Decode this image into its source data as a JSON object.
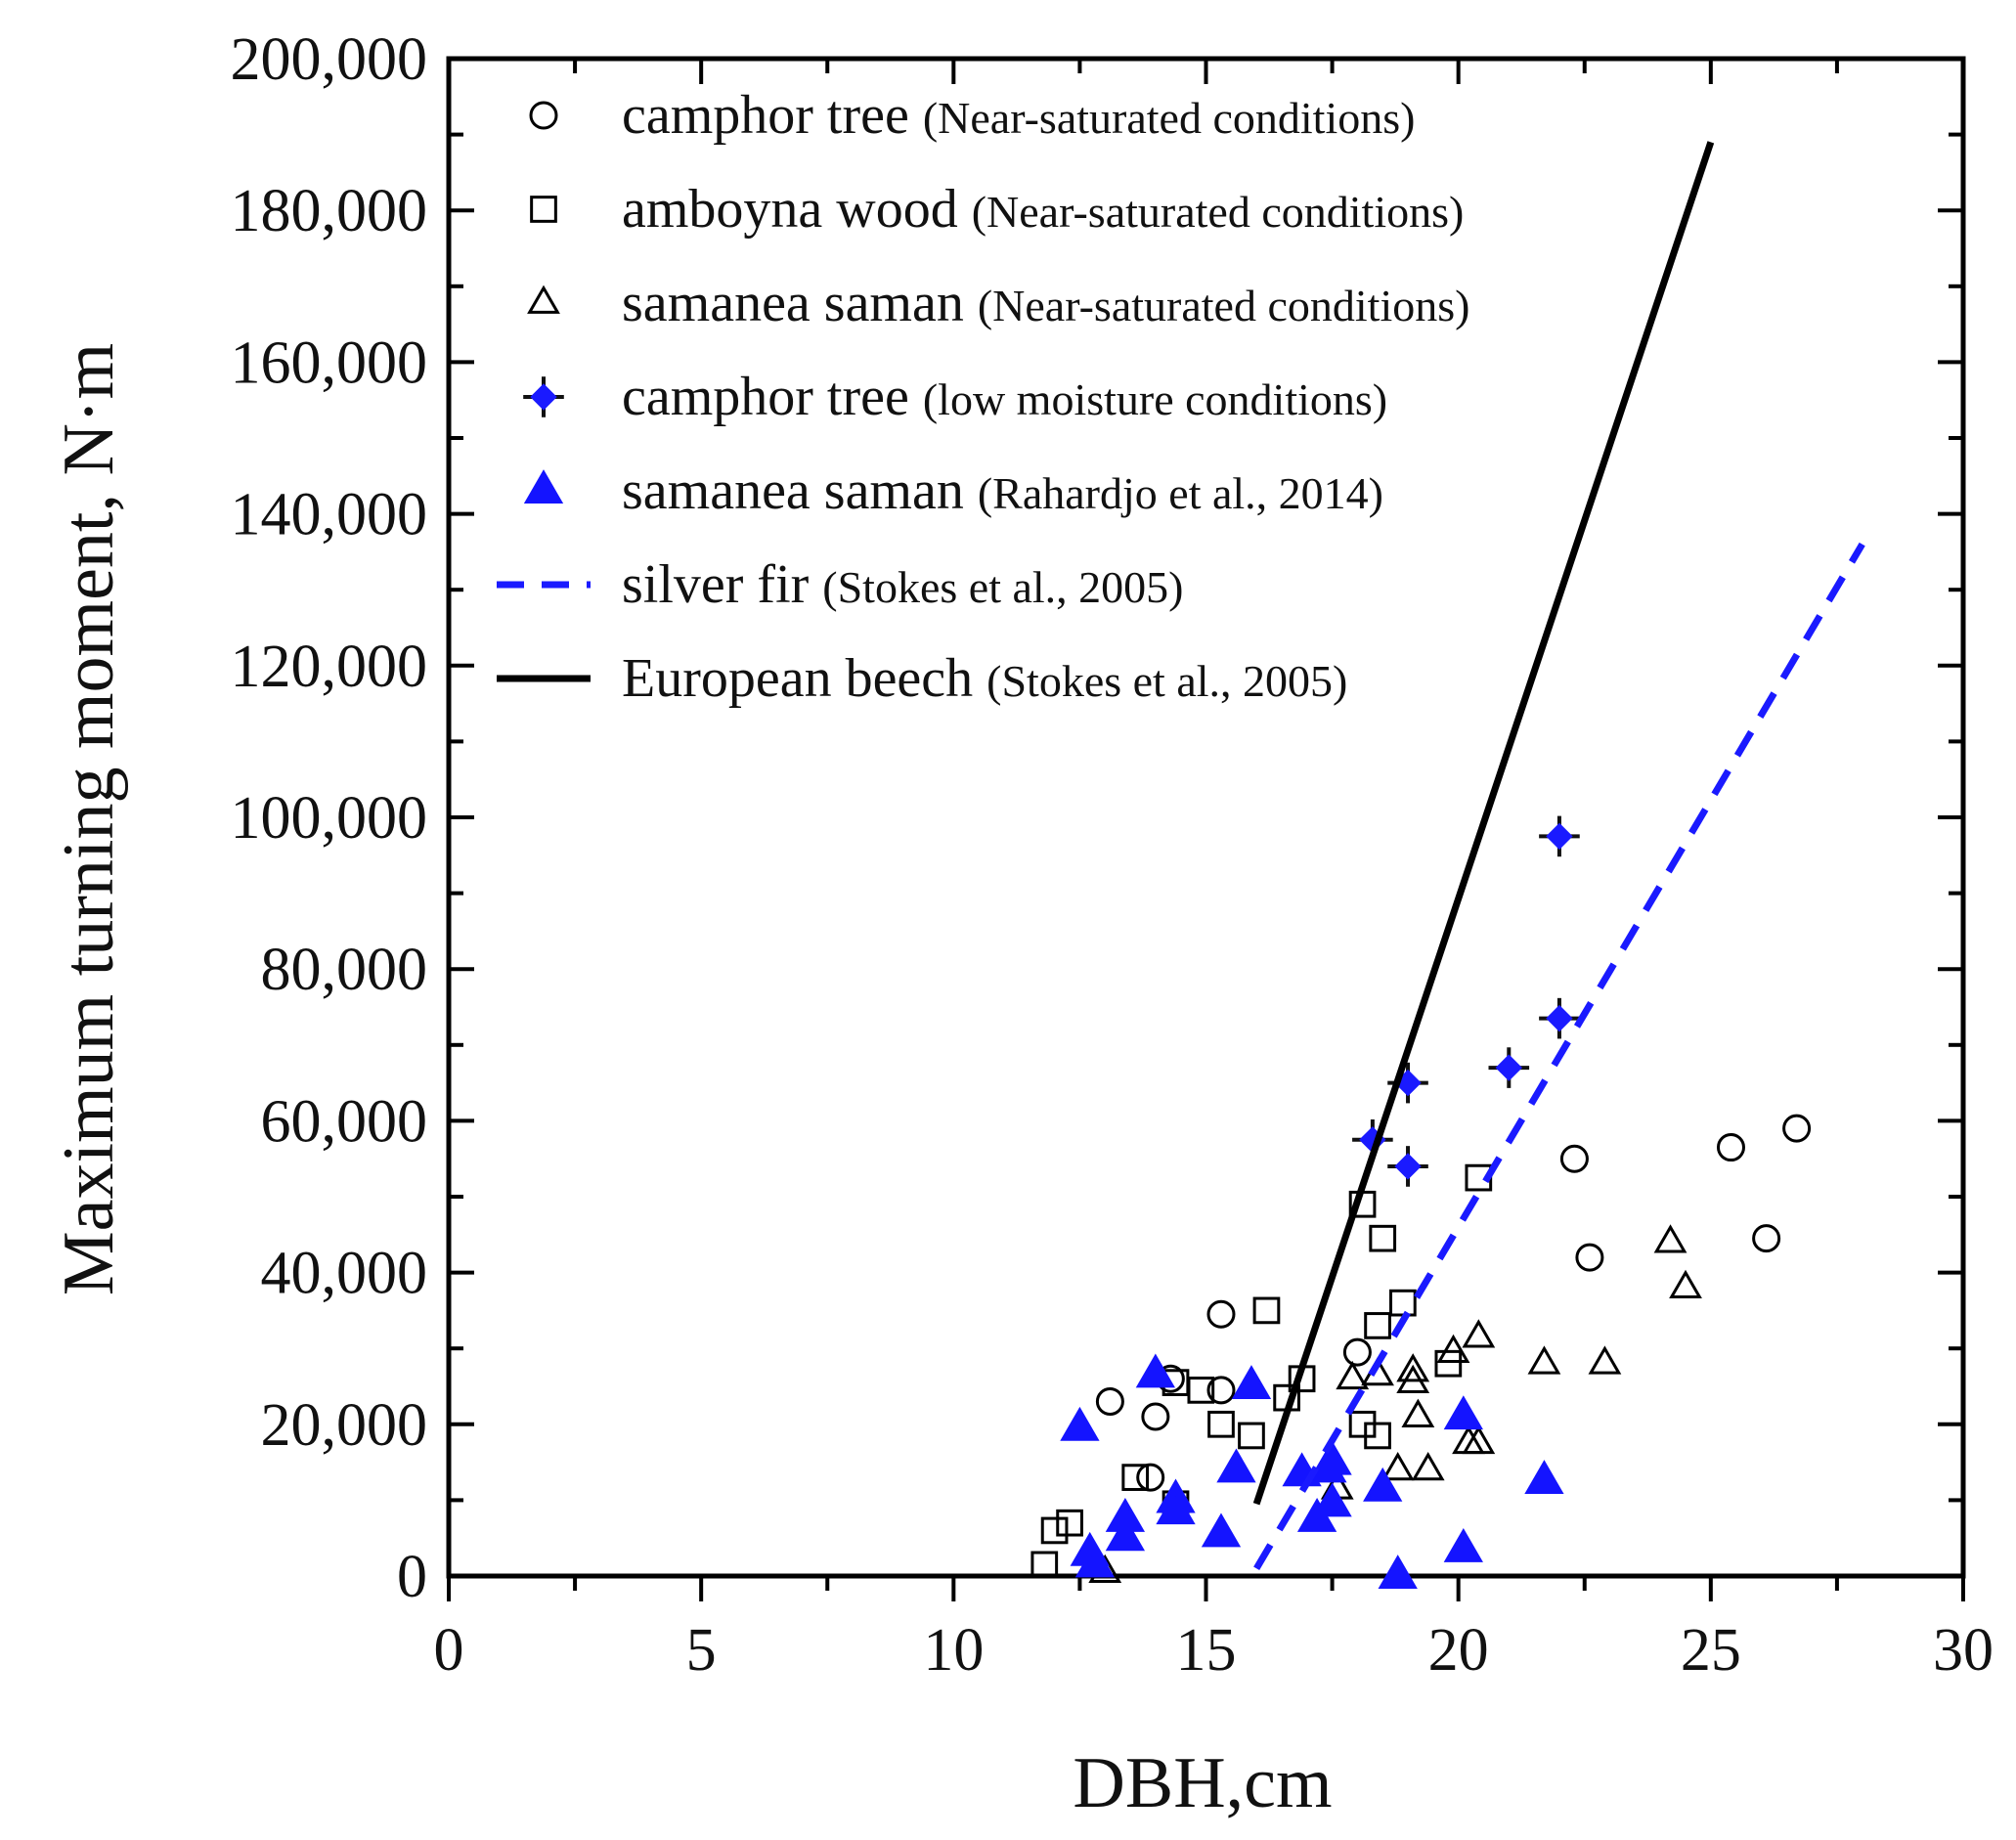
{
  "chart_data": {
    "type": "scatter",
    "title": "",
    "xlabel": "DBH,cm",
    "ylabel": "Maximum turning moment, N·m",
    "xlim": [
      0,
      30
    ],
    "ylim": [
      0,
      200000
    ],
    "x_ticks": [
      0,
      5,
      10,
      15,
      20,
      25,
      30
    ],
    "x_tick_labels": [
      "0",
      "5",
      "10",
      "15",
      "20",
      "25",
      "30"
    ],
    "y_ticks": [
      0,
      20000,
      40000,
      60000,
      80000,
      100000,
      120000,
      140000,
      160000,
      180000,
      200000
    ],
    "y_tick_labels": [
      "0",
      "20,000",
      "40,000",
      "60,000",
      "80,000",
      "100,000",
      "120,000",
      "140,000",
      "160,000",
      "180,000",
      "200,000"
    ],
    "grid": false,
    "legend_position": "top-left",
    "series": [
      {
        "name": "camphor tree",
        "condition": "(Near-saturated conditions)",
        "marker": "open-circle",
        "color": "#000000",
        "points": [
          [
            13.1,
            23000
          ],
          [
            14.0,
            21000
          ],
          [
            14.3,
            26000
          ],
          [
            15.3,
            34500
          ],
          [
            15.3,
            24500
          ],
          [
            18.0,
            29500
          ],
          [
            13.9,
            13000
          ],
          [
            22.3,
            55000
          ],
          [
            22.6,
            42000
          ],
          [
            25.4,
            56500
          ],
          [
            26.1,
            44500
          ],
          [
            26.7,
            59000
          ]
        ]
      },
      {
        "name": "amboyna wood",
        "condition": "(Near-saturated conditions)",
        "marker": "open-square",
        "color": "#000000",
        "points": [
          [
            11.8,
            1500
          ],
          [
            12.0,
            6000
          ],
          [
            12.3,
            7000
          ],
          [
            13.6,
            13000
          ],
          [
            14.4,
            9500
          ],
          [
            14.4,
            25500
          ],
          [
            14.9,
            24500
          ],
          [
            15.3,
            20000
          ],
          [
            15.9,
            18500
          ],
          [
            16.2,
            35000
          ],
          [
            16.6,
            23500
          ],
          [
            16.9,
            26000
          ],
          [
            18.1,
            49000
          ],
          [
            18.1,
            20000
          ],
          [
            18.4,
            33000
          ],
          [
            18.4,
            18500
          ],
          [
            18.5,
            44500
          ],
          [
            18.9,
            36000
          ],
          [
            19.8,
            28000
          ],
          [
            20.4,
            52500
          ]
        ]
      },
      {
        "name": "samanea saman",
        "condition": "(Near-saturated conditions)",
        "marker": "open-triangle",
        "color": "#000000",
        "points": [
          [
            13.0,
            500
          ],
          [
            17.6,
            11500
          ],
          [
            17.9,
            26000
          ],
          [
            18.4,
            26500
          ],
          [
            18.8,
            14000
          ],
          [
            19.1,
            27000
          ],
          [
            19.1,
            25500
          ],
          [
            19.2,
            21000
          ],
          [
            19.4,
            14000
          ],
          [
            19.9,
            29500
          ],
          [
            20.2,
            17500
          ],
          [
            20.4,
            31500
          ],
          [
            20.4,
            17500
          ],
          [
            21.7,
            28000
          ],
          [
            22.9,
            28000
          ],
          [
            24.2,
            44000
          ],
          [
            24.5,
            38000
          ]
        ]
      },
      {
        "name": "camphor tree",
        "condition": "(low moisture conditions)",
        "marker": "filled-diamond-cross",
        "color": "#1a1aff",
        "points": [
          [
            18.3,
            57500
          ],
          [
            19.0,
            65000
          ],
          [
            19.0,
            54000
          ],
          [
            21.0,
            67000
          ],
          [
            22.0,
            97500
          ],
          [
            22.0,
            73500
          ]
        ]
      },
      {
        "name": "samanea saman",
        "condition": "(Rahardjo et al., 2014)",
        "marker": "filled-triangle",
        "color": "#1414ff",
        "points": [
          [
            12.5,
            19500
          ],
          [
            12.7,
            3000
          ],
          [
            12.8,
            1500
          ],
          [
            13.4,
            5000
          ],
          [
            13.4,
            7500
          ],
          [
            14.0,
            26500
          ],
          [
            14.4,
            10000
          ],
          [
            14.4,
            8500
          ],
          [
            15.3,
            5500
          ],
          [
            15.6,
            14000
          ],
          [
            15.9,
            25000
          ],
          [
            16.9,
            13500
          ],
          [
            17.2,
            7500
          ],
          [
            17.4,
            14000
          ],
          [
            17.5,
            15000
          ],
          [
            17.5,
            9500
          ],
          [
            18.5,
            11500
          ],
          [
            18.8,
            0
          ],
          [
            20.1,
            3500
          ],
          [
            20.1,
            21000
          ],
          [
            21.7,
            12500
          ]
        ]
      },
      {
        "name": "silver fir",
        "condition": "(Stokes et al., 2005)",
        "marker": "dashed-line",
        "color": "#1a1aff",
        "points": [
          [
            16.0,
            1000
          ],
          [
            28.0,
            136000
          ]
        ]
      },
      {
        "name": "European beech",
        "condition": "(Stokes et al., 2005)",
        "marker": "solid-line",
        "color": "#000000",
        "points": [
          [
            16.0,
            9500
          ],
          [
            25.0,
            189000
          ]
        ]
      }
    ]
  }
}
